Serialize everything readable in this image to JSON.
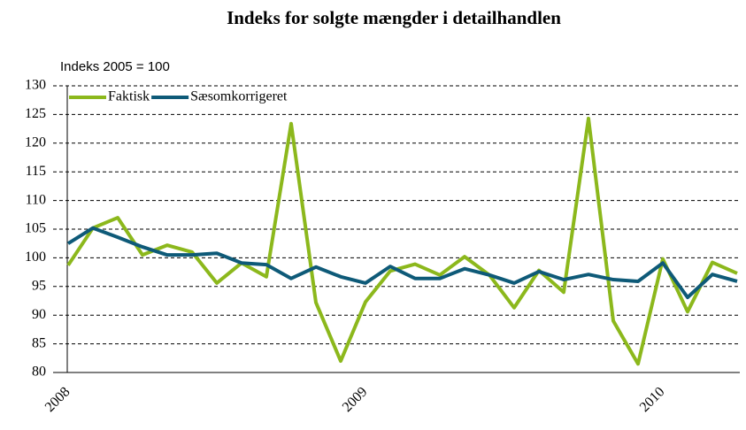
{
  "chart_data": {
    "type": "line",
    "title": "Indeks for solgte mængder i detailhandlen",
    "subtitle": "Indeks 2005 = 100",
    "categories": [
      "2008",
      null,
      null,
      null,
      null,
      null,
      null,
      null,
      null,
      null,
      null,
      null,
      "2009",
      null,
      null,
      null,
      null,
      null,
      null,
      null,
      null,
      null,
      null,
      null,
      "2010",
      null,
      null,
      null
    ],
    "series": [
      {
        "name": "Faktisk",
        "color": "#8cb81c",
        "values": [
          98.7,
          105.2,
          107,
          100.5,
          102.2,
          101,
          95.6,
          99.1,
          96.7,
          123.4,
          92.2,
          82,
          92.3,
          97.7,
          98.9,
          97,
          100.2,
          97,
          91.3,
          97.8,
          94,
          124.3,
          89,
          81.5,
          99.8,
          90.6,
          99.2,
          97.3
        ]
      },
      {
        "name": "Sæsomkorrigeret",
        "color": "#0e5a78",
        "values": [
          102.5,
          105.2,
          103.6,
          101.9,
          100.5,
          100.5,
          100.8,
          99.1,
          98.8,
          96.4,
          98.4,
          96.7,
          95.6,
          98.5,
          96.4,
          96.4,
          98.1,
          97,
          95.6,
          97.6,
          96.2,
          97.1,
          96.2,
          95.9,
          99.1,
          93.1,
          97.1,
          95.9
        ]
      }
    ],
    "ylim": [
      80,
      130
    ],
    "yticks": [
      80,
      85,
      90,
      95,
      100,
      105,
      110,
      115,
      120,
      125,
      130
    ],
    "grid": true,
    "legend": "top-left"
  }
}
